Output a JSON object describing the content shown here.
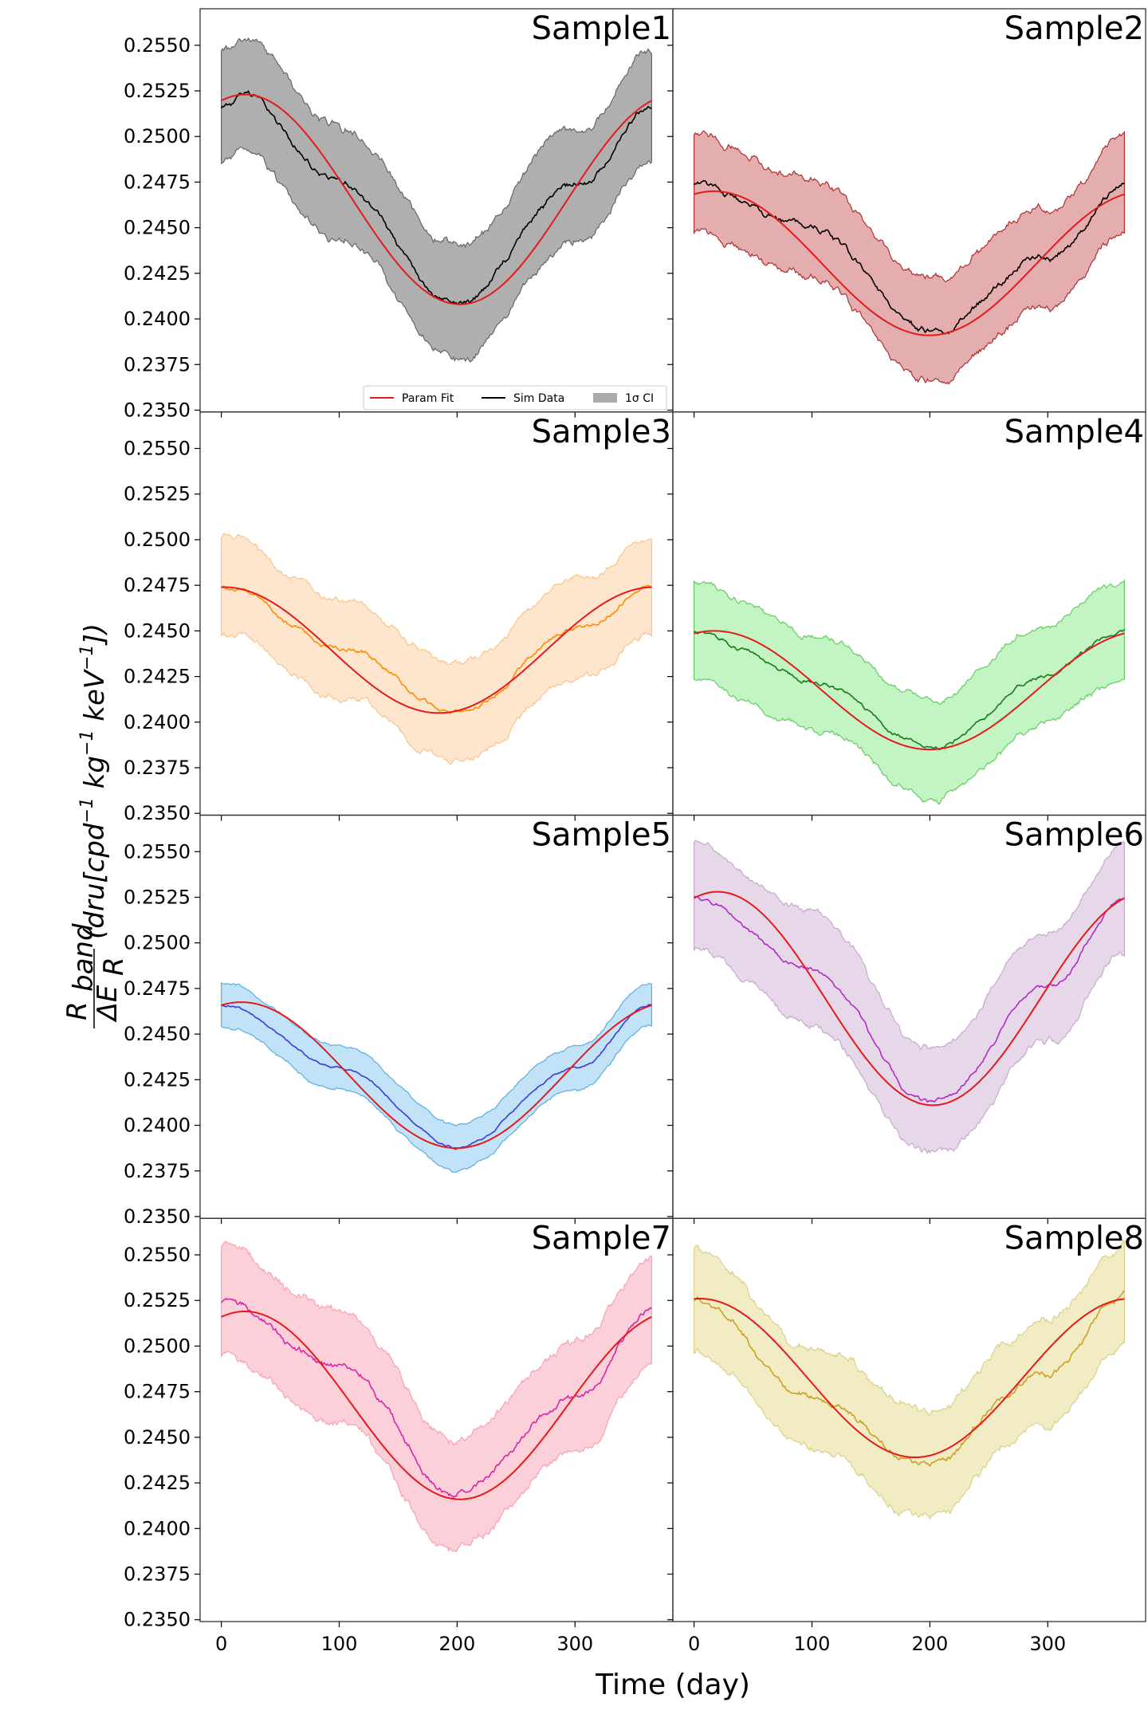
{
  "chart_data": {
    "type": "line",
    "layout": "4x2 grid, shared x and y axes",
    "xlabel": "Time (day)",
    "ylabel": {
      "numerator": "R",
      "numerator_sub": "band",
      "denominator": "ΔE",
      "denominator_sub": "R",
      "units": "(dru[cpd",
      "units_mid1": " kg",
      "units_mid2": " keV",
      "units_end": "])",
      "exponent": "−1"
    },
    "xlim": [
      -18,
      383
    ],
    "ylim": [
      0.2349,
      0.257
    ],
    "xticks": [
      0,
      100,
      200,
      300
    ],
    "xtick_labels": [
      "0",
      "100",
      "200",
      "300"
    ],
    "yticks": [
      0.235,
      0.2375,
      0.24,
      0.2425,
      0.245,
      0.2475,
      0.25,
      0.2525,
      0.255
    ],
    "ytick_labels": [
      "0.2350",
      "0.2375",
      "0.2400",
      "0.2425",
      "0.2450",
      "0.2475",
      "0.2500",
      "0.2525",
      "0.2550"
    ],
    "grid": false,
    "legend": {
      "placement": "lower-right (Sample1 panel)",
      "entries": [
        {
          "label": "Param Fit",
          "color": "#e41a1c",
          "kind": "line"
        },
        {
          "label": "Sim Data",
          "color": "#000000",
          "kind": "line"
        },
        {
          "label": "1σ CI",
          "color": "#aaaaaa",
          "kind": "patch"
        }
      ]
    },
    "panels": [
      {
        "title": "Sample1",
        "fill": "#a6a6a6",
        "edge": "#666666",
        "fill_opacity": 0.9,
        "data_color": "#000000",
        "fit_color": "#e41a1c",
        "fit": {
          "mean": 0.24655,
          "amplitude": 0.00575,
          "peak_day": 20
        },
        "ci_halfwidth": 0.0031,
        "sim_noise": 0.0003,
        "sim_data": {
          "day_0": 0.2516,
          "day_20": 0.2521,
          "day_100": 0.2475,
          "day_200": 0.2407,
          "day_300": 0.2472,
          "day_365": 0.2516
        }
      },
      {
        "title": "Sample2",
        "fill": "#d98b8b",
        "edge": "#b03030",
        "fill_opacity": 0.7,
        "data_color": "#000000",
        "fit_color": "#e41a1c",
        "fit": {
          "mean": 0.24305,
          "amplitude": 0.00395,
          "peak_day": 17
        },
        "ci_halfwidth": 0.0027,
        "sim_noise": 0.0003,
        "sim_data": {
          "day_0": 0.2474,
          "day_100": 0.2448,
          "day_200": 0.2393,
          "day_300": 0.2434,
          "day_365": 0.2474
        }
      },
      {
        "title": "Sample3",
        "fill": "#fde0c0",
        "edge": "#f9c58d",
        "fill_opacity": 0.8,
        "data_color": "#ff8c00",
        "fit_color": "#e41a1c",
        "fit": {
          "mean": 0.24395,
          "amplitude": 0.00345,
          "peak_day": 2
        },
        "ci_halfwidth": 0.0027,
        "sim_noise": 0.0002,
        "sim_data": {
          "day_0": 0.2474,
          "day_100": 0.2443,
          "day_200": 0.2405,
          "day_300": 0.245,
          "day_365": 0.2474
        }
      },
      {
        "title": "Sample4",
        "fill": "#a9f0a9",
        "edge": "#66cc66",
        "fill_opacity": 0.7,
        "data_color": "#1a7a1a",
        "fit_color": "#e41a1c",
        "fit": {
          "mean": 0.24175,
          "amplitude": 0.00325,
          "peak_day": 17
        },
        "ci_halfwidth": 0.0027,
        "sim_noise": 0.0002,
        "sim_data": {
          "day_0": 0.245,
          "day_100": 0.2423,
          "day_200": 0.2386,
          "day_300": 0.2425,
          "day_365": 0.245
        }
      },
      {
        "title": "Sample5",
        "fill": "#a8d6f5",
        "edge": "#5aaee0",
        "fill_opacity": 0.7,
        "data_color": "#3b3bdc",
        "fit_color": "#e41a1c",
        "fit": {
          "mean": 0.24275,
          "amplitude": 0.004,
          "peak_day": 17
        },
        "ci_halfwidth": 0.0012,
        "sim_noise": 0.0001,
        "sim_data": {
          "day_0": 0.2466,
          "day_100": 0.2432,
          "day_200": 0.2388,
          "day_300": 0.2431,
          "day_365": 0.2466
        }
      },
      {
        "title": "Sample6",
        "fill": "#e0cde4",
        "edge": "#c8a8cf",
        "fill_opacity": 0.8,
        "data_color": "#b22cc4",
        "fit_color": "#e41a1c",
        "fit": {
          "mean": 0.24695,
          "amplitude": 0.00585,
          "peak_day": 20
        },
        "ci_halfwidth": 0.003,
        "sim_noise": 0.0002,
        "sim_data": {
          "day_0": 0.2525,
          "day_100": 0.2485,
          "day_200": 0.2412,
          "day_300": 0.2474,
          "day_365": 0.2525
        }
      },
      {
        "title": "Sample7",
        "fill": "#fbc4cf",
        "edge": "#f7a3b3",
        "fill_opacity": 0.8,
        "data_color": "#d926a8",
        "fit_color": "#e41a1c",
        "fit": {
          "mean": 0.24675,
          "amplitude": 0.00515,
          "peak_day": 20
        },
        "ci_halfwidth": 0.003,
        "sim_noise": 0.0003,
        "sim_data": {
          "day_0": 0.2524,
          "day_100": 0.249,
          "day_200": 0.242,
          "day_300": 0.247,
          "day_365": 0.252
        }
      },
      {
        "title": "Sample8",
        "fill": "#efe7b5",
        "edge": "#ddd08a",
        "fill_opacity": 0.8,
        "data_color": "#c9a227",
        "fit_color": "#e41a1c",
        "fit": {
          "mean": 0.24825,
          "amplitude": 0.00435,
          "peak_day": 5
        },
        "ci_halfwidth": 0.0028,
        "sim_noise": 0.0003,
        "sim_data": {
          "day_0": 0.2525,
          "day_100": 0.247,
          "day_200": 0.2436,
          "day_300": 0.2484,
          "day_365": 0.2527
        }
      }
    ]
  }
}
